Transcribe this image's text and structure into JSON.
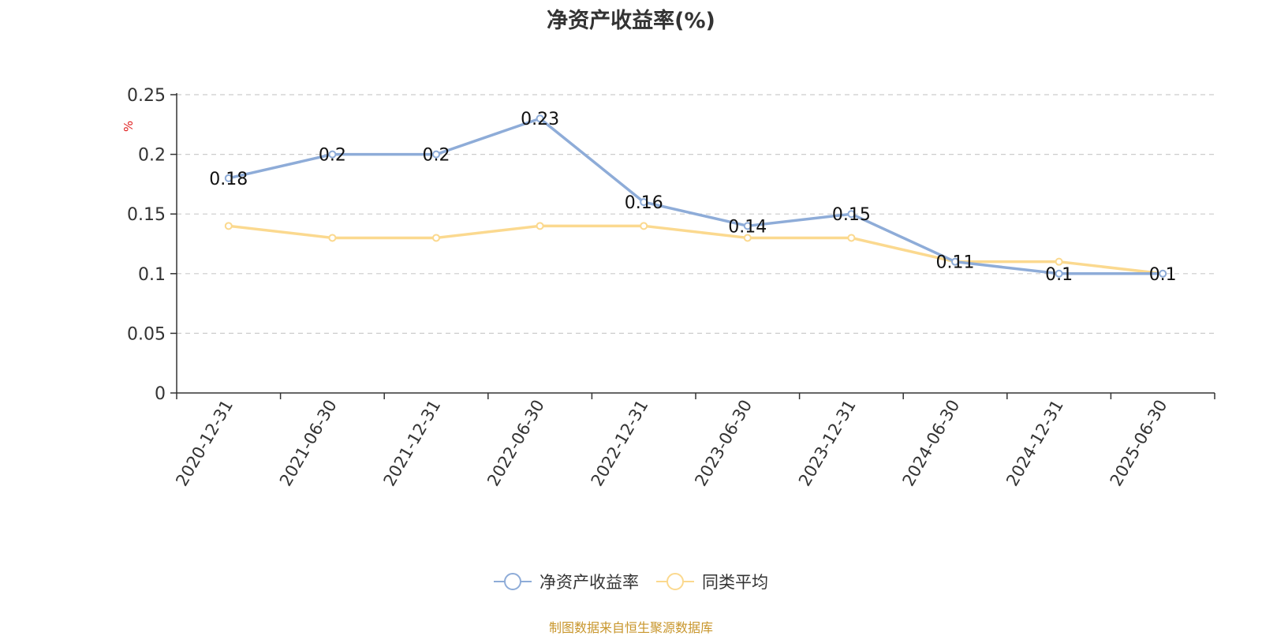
{
  "title": "净资产收益率(%)",
  "footer": "制图数据来自恒生聚源数据库",
  "chart_data": {
    "type": "line",
    "title": "净资产收益率(%)",
    "ylabel": "%",
    "xlabel": "",
    "categories": [
      "2020-12-31",
      "2021-06-30",
      "2021-12-31",
      "2022-06-30",
      "2022-12-31",
      "2023-06-30",
      "2023-12-31",
      "2024-06-30",
      "2024-12-31",
      "2025-06-30"
    ],
    "ylim": [
      0,
      0.25
    ],
    "yticks": [
      "0",
      "0.05",
      "0.1",
      "0.15",
      "0.2",
      "0.25"
    ],
    "grid": true,
    "legend_position": "bottom",
    "series": [
      {
        "name": "净资产收益率",
        "color": "#8eacd8",
        "values": [
          0.18,
          0.2,
          0.2,
          0.23,
          0.16,
          0.14,
          0.15,
          0.11,
          0.1,
          0.1
        ],
        "labels": true
      },
      {
        "name": "同类平均",
        "color": "#fbd98f",
        "values": [
          0.14,
          0.13,
          0.13,
          0.14,
          0.14,
          0.13,
          0.13,
          0.11,
          0.11,
          0.1
        ],
        "labels": false
      }
    ]
  }
}
